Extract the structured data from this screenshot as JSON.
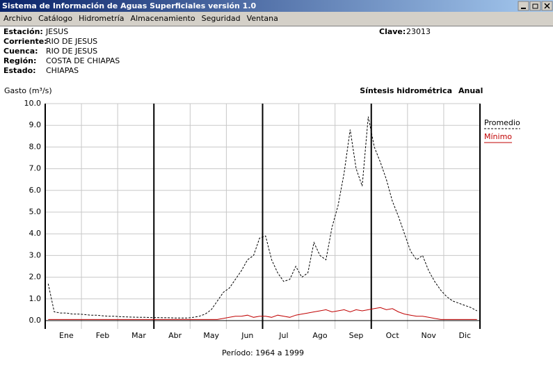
{
  "window": {
    "title": "Sistema de Información de Aguas Superficiales  versión 1.0"
  },
  "menu": [
    "Archivo",
    "Catálogo",
    "Hidrometría",
    "Almacenamiento",
    "Seguridad",
    "Ventana"
  ],
  "station": {
    "rows": [
      [
        "Estación:",
        "JESUS"
      ],
      [
        "Corriente:",
        "RIO DE JESUS"
      ],
      [
        "Cuenca:",
        "RIO DE JESUS"
      ],
      [
        "Región:",
        "COSTA DE CHIAPAS"
      ],
      [
        "Estado:",
        "CHIAPAS"
      ]
    ],
    "clave_label": "Clave:",
    "clave": "23013"
  },
  "chart_data": {
    "type": "line",
    "title": "Síntesis hidrométrica",
    "subtitle": "Anual",
    "ylabel": "Gasto (m³/s)",
    "footer": "Período:  1964 a 1999",
    "categories": [
      null,
      null,
      null,
      "Ene",
      null,
      null,
      null,
      null,
      null,
      "Feb",
      null,
      null,
      null,
      null,
      null,
      "Mar",
      null,
      null,
      null,
      null,
      null,
      "Abr",
      null,
      null,
      null,
      null,
      null,
      "May",
      null,
      null,
      null,
      null,
      null,
      "Jun",
      null,
      null,
      null,
      null,
      null,
      "Jul",
      null,
      null,
      null,
      null,
      null,
      "Ago",
      null,
      null,
      null,
      null,
      null,
      "Sep",
      null,
      null,
      null,
      null,
      null,
      "Oct",
      null,
      null,
      null,
      null,
      null,
      "Nov",
      null,
      null,
      null,
      null,
      null,
      "Dic",
      null,
      null
    ],
    "series": [
      {
        "name": "Promedio",
        "color": "#000000",
        "dash": true,
        "values": [
          1.7,
          0.4,
          0.35,
          0.35,
          0.3,
          0.3,
          0.28,
          0.25,
          0.25,
          0.22,
          0.2,
          0.2,
          0.18,
          0.17,
          0.16,
          0.15,
          0.15,
          0.14,
          0.14,
          0.13,
          0.13,
          0.12,
          0.12,
          0.12,
          0.15,
          0.2,
          0.3,
          0.5,
          0.9,
          1.3,
          1.5,
          1.9,
          2.3,
          2.8,
          3.0,
          3.8,
          3.9,
          2.8,
          2.2,
          1.8,
          1.9,
          2.5,
          2.0,
          2.2,
          3.6,
          3.0,
          2.8,
          4.3,
          5.3,
          6.8,
          8.8,
          7.0,
          6.2,
          9.4,
          8.0,
          7.3,
          6.5,
          5.5,
          4.8,
          4.0,
          3.2,
          2.8,
          3.0,
          2.3,
          1.8,
          1.4,
          1.1,
          0.9,
          0.8,
          0.7,
          0.6,
          0.45
        ]
      },
      {
        "name": "Mínimo",
        "color": "#c00000",
        "dash": false,
        "values": [
          0.05,
          0.05,
          0.05,
          0.05,
          0.05,
          0.05,
          0.05,
          0.05,
          0.05,
          0.05,
          0.05,
          0.05,
          0.05,
          0.05,
          0.05,
          0.05,
          0.05,
          0.05,
          0.05,
          0.05,
          0.05,
          0.05,
          0.05,
          0.05,
          0.05,
          0.05,
          0.05,
          0.05,
          0.05,
          0.1,
          0.15,
          0.2,
          0.2,
          0.25,
          0.15,
          0.2,
          0.2,
          0.15,
          0.25,
          0.2,
          0.15,
          0.25,
          0.3,
          0.35,
          0.4,
          0.45,
          0.5,
          0.4,
          0.45,
          0.5,
          0.4,
          0.5,
          0.45,
          0.5,
          0.55,
          0.6,
          0.5,
          0.55,
          0.4,
          0.3,
          0.25,
          0.2,
          0.2,
          0.15,
          0.1,
          0.05,
          0.05,
          0.05,
          0.05,
          0.05,
          0.05,
          0.05
        ]
      }
    ],
    "ylim": [
      0,
      10
    ],
    "yticks": [
      {
        "value": 0,
        "label": "0.0"
      },
      {
        "value": 1,
        "label": "1.0"
      },
      {
        "value": 2,
        "label": "2.0"
      },
      {
        "value": 3,
        "label": "3.0"
      },
      {
        "value": 4,
        "label": "4.0"
      },
      {
        "value": 5,
        "label": "5.0"
      },
      {
        "value": 6,
        "label": "6.0"
      },
      {
        "value": 7,
        "label": "7.0"
      },
      {
        "value": 8,
        "label": "8.0"
      },
      {
        "value": 9,
        "label": "9.0"
      },
      {
        "value": 10,
        "label": "10.0"
      }
    ],
    "grid": true,
    "legend": "right"
  }
}
